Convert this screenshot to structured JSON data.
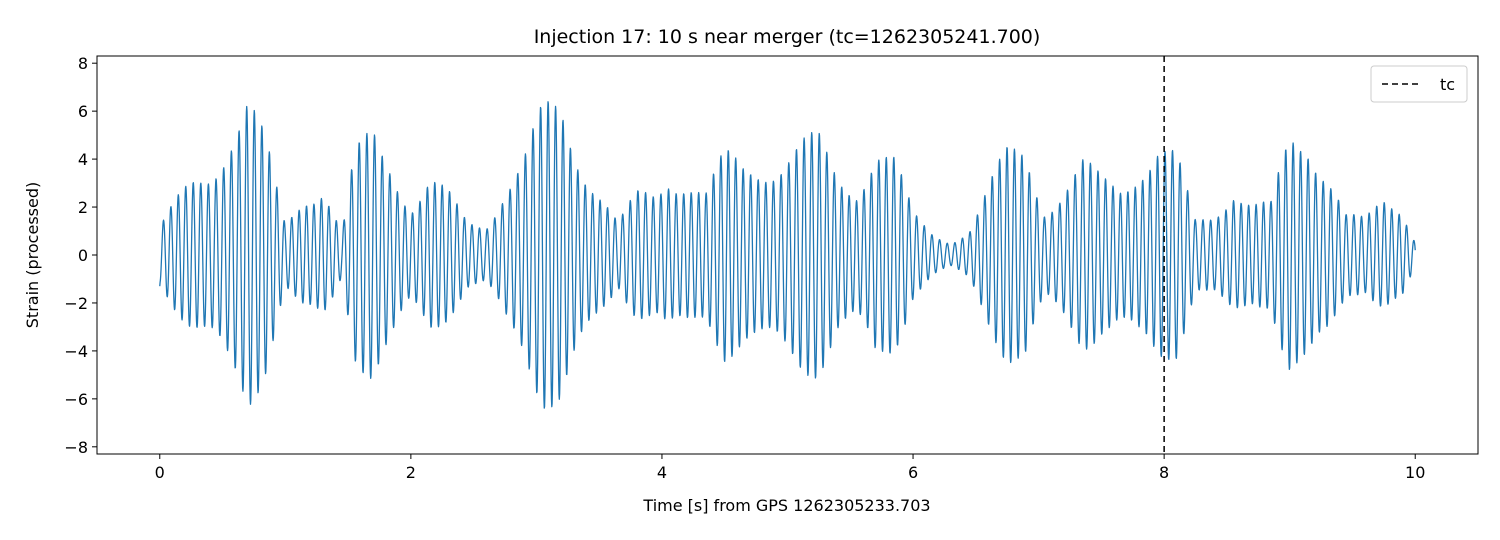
{
  "chart_data": {
    "type": "line",
    "title": "Injection 17: 10 s near merger (tc=1262305241.700)",
    "xlabel": "Time [s] from GPS 1262305233.703",
    "ylabel": "Strain (processed)",
    "xlim": [
      -0.5,
      10.5
    ],
    "ylim": [
      -8.3,
      8.3
    ],
    "xticks": [
      0,
      2,
      4,
      6,
      8,
      10
    ],
    "yticks": [
      -8,
      -6,
      -4,
      -2,
      0,
      2,
      4,
      6,
      8
    ],
    "grid": false,
    "legend_position": "top-right",
    "series": [
      {
        "name": "",
        "color": "#1f77b4",
        "description": "oscillatory processed strain time series",
        "x_start": 0.0,
        "x_end": 10.0,
        "envelope": {
          "t": [
            0.0,
            0.1,
            0.25,
            0.4,
            0.55,
            0.7,
            0.85,
            1.0,
            1.15,
            1.3,
            1.45,
            1.55,
            1.7,
            1.85,
            2.0,
            2.15,
            2.3,
            2.45,
            2.6,
            2.75,
            2.9,
            3.05,
            3.2,
            3.35,
            3.5,
            3.65,
            3.8,
            3.95,
            4.05,
            4.2,
            4.35,
            4.5,
            4.65,
            4.8,
            4.95,
            5.1,
            5.25,
            5.4,
            5.55,
            5.7,
            5.85,
            6.0,
            6.15,
            6.3,
            6.45,
            6.6,
            6.75,
            6.9,
            7.05,
            7.2,
            7.35,
            7.5,
            7.65,
            7.8,
            7.95,
            8.1,
            8.25,
            8.4,
            8.55,
            8.7,
            8.85,
            9.0,
            9.15,
            9.3,
            9.45,
            9.6,
            9.75,
            9.9,
            10.0
          ],
          "amp": [
            1.3,
            2.2,
            3.5,
            4.5,
            6.3,
            7.4,
            5.0,
            1.5,
            3.2,
            3.6,
            1.0,
            4.5,
            5.9,
            4.8,
            2.6,
            3.6,
            2.8,
            1.6,
            1.6,
            3.6,
            4.6,
            6.6,
            7.2,
            5.2,
            3.4,
            1.5,
            2.8,
            3.0,
            4.2,
            4.0,
            3.0,
            4.6,
            4.3,
            4.8,
            5.0,
            5.3,
            5.3,
            3.8,
            3.6,
            5.6,
            4.5,
            1.9,
            1.1,
            0.7,
            1.3,
            3.1,
            4.8,
            5.4,
            2.5,
            3.2,
            4.2,
            3.6,
            3.6,
            4.8,
            5.3,
            4.5,
            1.6,
            2.1,
            3.6,
            2.5,
            2.3,
            5.5,
            6.0,
            4.6,
            2.0,
            1.6,
            2.6,
            2.5,
            0.8
          ]
        },
        "dominant_period_s": 0.06,
        "start_value": -1.3,
        "end_value": 0.2
      }
    ],
    "markers": [
      {
        "type": "vline",
        "x": 8.0,
        "label": "tc",
        "color": "#000000",
        "style": "dashed"
      }
    ]
  }
}
